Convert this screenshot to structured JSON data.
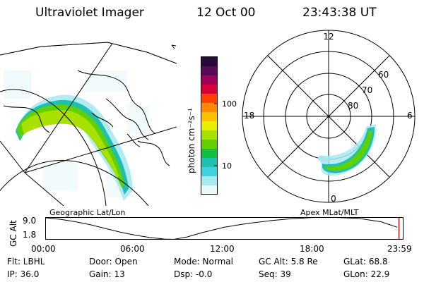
{
  "header": {
    "title": "Ultraviolet Imager",
    "date": "12 Oct 00",
    "time": "23:43:38 UT"
  },
  "colorbar": {
    "unit_label": "photon cm⁻²s⁻¹",
    "tick_100": "100",
    "tick_10": "10",
    "colors": [
      "#2a0a3a",
      "#5a0a5a",
      "#a0005a",
      "#d8003a",
      "#ff4000",
      "#ff8a00",
      "#ffc000",
      "#e8f000",
      "#a8e000",
      "#60d000",
      "#10c040",
      "#20c0b0",
      "#40d0e0",
      "#a8e8f0",
      "#e8f8f8"
    ]
  },
  "polar": {
    "labels": {
      "top": "12",
      "bottom": "0",
      "left": "18",
      "right": "6"
    },
    "lat_labels": [
      "60",
      "70",
      "80"
    ]
  },
  "left_caption": "Geographic Lat/Lon",
  "right_caption": "Apex MLat/MLT",
  "altitude_plot": {
    "ylabel": "GC Alt",
    "yticks": [
      "9.0",
      "1.8"
    ],
    "xticks": [
      "00:00",
      "06:00",
      "12:00",
      "18:00",
      "23:59"
    ],
    "ylim": [
      1.8,
      9.0
    ],
    "xlim": [
      0,
      24
    ],
    "series": {
      "x": [
        0,
        1,
        2,
        3,
        4,
        5,
        6,
        7,
        8,
        8.6,
        9.5,
        10.5,
        12,
        13.5,
        15,
        16.5,
        18,
        19.5,
        21,
        22.5,
        23.6
      ],
      "y": [
        8.9,
        8.4,
        7.6,
        6.6,
        5.4,
        4.2,
        3.2,
        2.4,
        1.9,
        1.8,
        2.6,
        4.0,
        5.8,
        7.0,
        7.9,
        8.6,
        9.0,
        9.0,
        8.7,
        7.6,
        5.8
      ]
    },
    "marker_x": 23.72
  },
  "info": {
    "filter": "Flt: LBHL",
    "door": "Door: Open",
    "mode": "Mode: Normal",
    "gc_alt": "GC Alt: 5.8 Re",
    "glat": "GLat: 68.8",
    "ip": "IP: 36.0",
    "gain": "Gain: 13",
    "dsp": "Dsp:   -0.0",
    "seq": "Seq: 39",
    "glon": "GLon: 22.9"
  }
}
